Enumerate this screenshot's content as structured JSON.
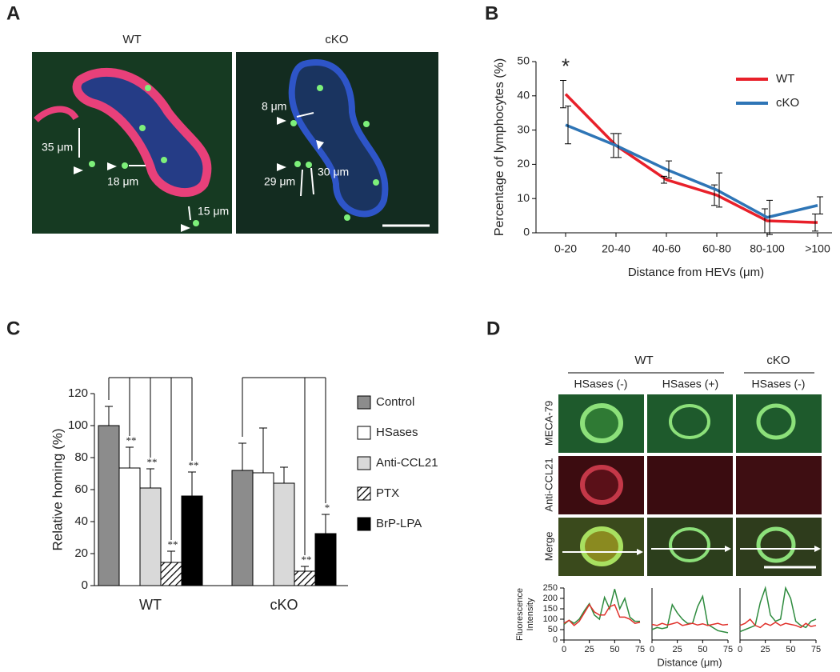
{
  "panel_labels": [
    "A",
    "B",
    "C",
    "D"
  ],
  "panel_a": {
    "titles": [
      "WT",
      "cKO"
    ],
    "annotations": [
      "35 μm",
      "18 μm",
      "15 μm",
      "8 μm",
      "30 μm",
      "29 μm"
    ]
  },
  "panel_d": {
    "group_headers": [
      "WT",
      "cKO"
    ],
    "column_headers": [
      "HSases (-)",
      "HSases (+)",
      "HSases (-)"
    ],
    "row_labels": [
      "MECA-79",
      "Anti-CCL21",
      "Merge"
    ],
    "plot_ylabel": [
      "Fluorescence",
      "Intensity"
    ],
    "plot_xlabel": "Distance (μm)"
  },
  "chart_data": [
    {
      "type": "line",
      "categories": [
        "0-20",
        "20-40",
        "40-60",
        "60-80",
        "80-100",
        ">100"
      ],
      "series": [
        {
          "name": "WT",
          "color": "#e8202a",
          "values": [
            40.5,
            25.5,
            15.5,
            11,
            3.5,
            3
          ],
          "errors": [
            4,
            3.5,
            1,
            3,
            3.5,
            2.5
          ]
        },
        {
          "name": "cKO",
          "color": "#2e75b6",
          "values": [
            31.5,
            25.5,
            18.5,
            12.5,
            4.5,
            8
          ],
          "errors": [
            5.5,
            3.5,
            2.5,
            5,
            5,
            2.5
          ]
        }
      ],
      "ylim": [
        0,
        50
      ],
      "yticks": [
        0,
        10,
        20,
        30,
        40,
        50
      ],
      "xlabel": "Distance from HEVs (μm)",
      "ylabel": "Percentage of lymphocytes (%)",
      "annotation": "*",
      "legend": "upper right"
    },
    {
      "type": "bar",
      "categories": [
        "WT",
        "cKO"
      ],
      "series": [
        {
          "name": "Control",
          "color": "#8c8c8c",
          "values": [
            100,
            72
          ],
          "errors": [
            12,
            17
          ]
        },
        {
          "name": "HSases",
          "color": "#ffffff",
          "values": [
            73.5,
            70.5
          ],
          "errors": [
            13,
            28
          ],
          "annotations": [
            "**",
            null
          ]
        },
        {
          "name": "Anti-CCL21",
          "color": "#d9d9d9",
          "values": [
            61,
            64
          ],
          "errors": [
            12,
            10
          ],
          "annotations": [
            "**",
            null
          ]
        },
        {
          "name": "PTX",
          "color": "#ffffff",
          "hatch": true,
          "values": [
            14.5,
            9
          ],
          "errors": [
            7,
            3
          ],
          "annotations": [
            "**",
            "**"
          ]
        },
        {
          "name": "BrP-LPA",
          "color": "#000000",
          "values": [
            56,
            32.5
          ],
          "errors": [
            15,
            12
          ],
          "annotations": [
            "**",
            "*"
          ]
        }
      ],
      "ylim": [
        0,
        120
      ],
      "yticks": [
        0,
        20,
        40,
        60,
        80,
        100,
        120
      ],
      "ylabel": "Relative homing (%)",
      "legend": "right"
    },
    {
      "type": "line",
      "x": [
        0,
        5,
        10,
        15,
        20,
        25,
        30,
        35,
        40,
        45,
        50,
        55,
        60,
        65,
        70,
        75
      ],
      "series": [
        {
          "color": "#2e8b3e",
          "values": [
            75,
            95,
            80,
            100,
            140,
            175,
            120,
            100,
            205,
            150,
            245,
            150,
            200,
            110,
            90,
            90
          ]
        },
        {
          "color": "#e0302a",
          "values": [
            80,
            95,
            70,
            90,
            130,
            170,
            135,
            120,
            120,
            160,
            170,
            110,
            110,
            100,
            80,
            85
          ]
        }
      ],
      "xlim": [
        0,
        75
      ],
      "xticks": [
        0,
        25,
        50,
        75
      ],
      "ylim": [
        0,
        250
      ],
      "yticks": [
        0,
        50,
        100,
        150,
        200,
        250
      ]
    },
    {
      "type": "line",
      "x": [
        0,
        5,
        10,
        15,
        20,
        25,
        30,
        35,
        40,
        45,
        50,
        55,
        60,
        65,
        70,
        75
      ],
      "series": [
        {
          "color": "#2e8b3e",
          "values": [
            50,
            60,
            55,
            60,
            170,
            130,
            100,
            80,
            80,
            160,
            210,
            75,
            60,
            45,
            40,
            35
          ]
        },
        {
          "color": "#e0302a",
          "values": [
            75,
            70,
            80,
            72,
            78,
            85,
            70,
            75,
            80,
            72,
            78,
            70,
            75,
            80,
            72,
            75
          ]
        }
      ],
      "xlim": [
        0,
        75
      ],
      "xticks": [
        0,
        25,
        50,
        75
      ],
      "ylim": [
        0,
        250
      ]
    },
    {
      "type": "line",
      "x": [
        0,
        5,
        10,
        15,
        20,
        25,
        30,
        35,
        40,
        45,
        50,
        55,
        60,
        65,
        70,
        75
      ],
      "series": [
        {
          "color": "#2e8b3e",
          "values": [
            40,
            50,
            60,
            70,
            180,
            250,
            120,
            90,
            100,
            250,
            200,
            90,
            70,
            60,
            90,
            100
          ]
        },
        {
          "color": "#e0302a",
          "values": [
            70,
            80,
            100,
            70,
            60,
            80,
            70,
            85,
            70,
            80,
            75,
            70,
            60,
            80,
            65,
            70
          ]
        }
      ],
      "xlim": [
        0,
        75
      ],
      "xticks": [
        0,
        25,
        50,
        75
      ],
      "ylim": [
        0,
        250
      ]
    }
  ]
}
